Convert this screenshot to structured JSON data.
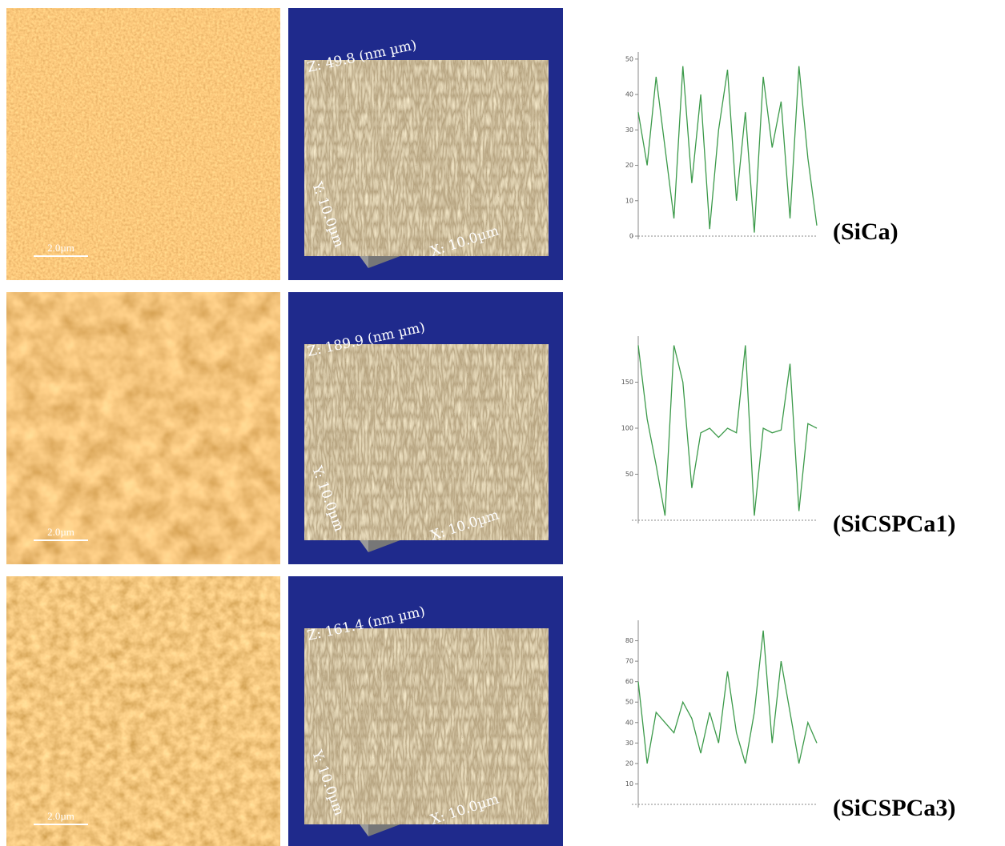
{
  "rows": [
    {
      "label": "(SiCa)",
      "scale_bar": "2.0µm",
      "surface": {
        "z": "Z: 49.8 (nm µm)",
        "y": "Y: 10.0µm",
        "x": "X: 10.0µm"
      },
      "profile": {
        "type": "line",
        "color": "#3c9a4a",
        "xlim": [
          0,
          10
        ],
        "ylim": [
          0,
          52
        ],
        "yticks": [
          0,
          10,
          20,
          30,
          40,
          50
        ],
        "x": [
          0,
          0.5,
          1,
          1.5,
          2,
          2.5,
          3,
          3.5,
          4,
          4.5,
          5,
          5.5,
          6,
          6.5,
          7,
          7.5,
          8,
          8.5,
          9,
          9.5,
          10
        ],
        "values": [
          35,
          20,
          45,
          25,
          5,
          48,
          15,
          40,
          2,
          30,
          47,
          10,
          35,
          1,
          45,
          25,
          38,
          5,
          48,
          22,
          3
        ]
      }
    },
    {
      "label": "(SiCSPCa1)",
      "scale_bar": "2.0µm",
      "surface": {
        "z": "Z: 189.9 (nm µm)",
        "y": "Y: 10.0µm",
        "x": "X: 10.0µm"
      },
      "profile": {
        "type": "line",
        "color": "#3c9a4a",
        "xlim": [
          0,
          10
        ],
        "ylim": [
          0,
          200
        ],
        "yticks": [
          50,
          100,
          150
        ],
        "x": [
          0,
          0.5,
          1,
          1.5,
          2,
          2.5,
          3,
          3.5,
          4,
          4.5,
          5,
          5.5,
          6,
          6.5,
          7,
          7.5,
          8,
          8.5,
          9,
          9.5,
          10
        ],
        "values": [
          190,
          110,
          60,
          5,
          190,
          150,
          35,
          95,
          100,
          90,
          100,
          95,
          190,
          5,
          100,
          95,
          98,
          170,
          10,
          105,
          100
        ]
      }
    },
    {
      "label": "(SiCSPCa3)",
      "scale_bar": "2.0µm",
      "surface": {
        "z": "Z: 161.4 (nm µm)",
        "y": "Y: 10.0µm",
        "x": "X: 10.0µm"
      },
      "profile": {
        "type": "line",
        "color": "#3c9a4a",
        "xlim": [
          0,
          10
        ],
        "ylim": [
          0,
          90
        ],
        "yticks": [
          10,
          20,
          30,
          40,
          50,
          60,
          70,
          80
        ],
        "x": [
          0,
          0.5,
          1,
          1.5,
          2,
          2.5,
          3,
          3.5,
          4,
          4.5,
          5,
          5.5,
          6,
          6.5,
          7,
          7.5,
          8,
          8.5,
          9,
          9.5,
          10
        ],
        "values": [
          60,
          20,
          45,
          40,
          35,
          50,
          42,
          25,
          45,
          30,
          65,
          35,
          20,
          45,
          85,
          30,
          70,
          45,
          20,
          40,
          30
        ]
      }
    }
  ]
}
